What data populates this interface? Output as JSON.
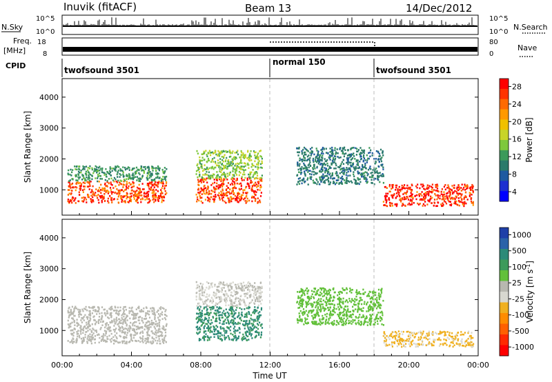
{
  "header": {
    "station": "Inuvik (fitACF)",
    "beam": "Beam 13",
    "date": "14/Dec/2012"
  },
  "status_panels": {
    "nsky_label": "N.Sky",
    "nsky_ticks": [
      "10^5",
      "10^0"
    ],
    "nsearch_label": "N.Search",
    "freq_label": "Freq.",
    "freq_unit": "[MHz]",
    "freq_ticks": [
      "18",
      "8"
    ],
    "nave_label": "Nave",
    "nave_ticks": [
      "80",
      "0"
    ],
    "cpid_label": "CPID",
    "cpid_segments": [
      {
        "name": "twofsound 3501",
        "start_hour": 0,
        "end_hour": 12
      },
      {
        "name": "normal 150",
        "start_hour": 12,
        "end_hour": 18
      },
      {
        "name": "twofsound 3501",
        "start_hour": 18,
        "end_hour": 24
      }
    ]
  },
  "chart_data": [
    {
      "type": "heatmap",
      "panel": "power",
      "ylabel": "Slant Range [km]",
      "xlabel": "",
      "ylim": [
        180,
        4600
      ],
      "xlim": [
        0,
        24
      ],
      "yticks": [
        1000,
        2000,
        3000,
        4000
      ],
      "colorbar": {
        "label": "Power [dB]",
        "ticks": [
          "28",
          "24",
          "20",
          "16",
          "12",
          "8",
          "4"
        ],
        "colors": [
          "#ff0000",
          "#ff3300",
          "#ff6a00",
          "#ff9900",
          "#f0c000",
          "#c8d428",
          "#7ec83c",
          "#3c9a5a",
          "#2a7a6a",
          "#1f5aa0",
          "#1d2fd0",
          "#0000ff"
        ]
      },
      "echo_regions": [
        {
          "x": [
            0.3,
            6.0
          ],
          "y": [
            600,
            1300
          ],
          "value": 26
        },
        {
          "x": [
            0.3,
            6.0
          ],
          "y": [
            1300,
            1800
          ],
          "value": 12
        },
        {
          "x": [
            7.7,
            11.5
          ],
          "y": [
            600,
            1400
          ],
          "value": 26
        },
        {
          "x": [
            7.7,
            11.5
          ],
          "y": [
            1400,
            2300
          ],
          "value": 15
        },
        {
          "x": [
            13.5,
            18.5
          ],
          "y": [
            1200,
            2400
          ],
          "value": 10
        },
        {
          "x": [
            18.5,
            23.7
          ],
          "y": [
            500,
            1200
          ],
          "value": 28
        }
      ]
    },
    {
      "type": "heatmap",
      "panel": "velocity",
      "ylabel": "Slant Range [km]",
      "xlabel": "Time UT",
      "ylim": [
        180,
        4600
      ],
      "xlim": [
        0,
        24
      ],
      "yticks": [
        1000,
        2000,
        3000,
        4000
      ],
      "xticks": [
        "00:00",
        "04:00",
        "08:00",
        "12:00",
        "16:00",
        "20:00",
        "00:00"
      ],
      "colorbar": {
        "label": "Velocity [m s",
        "label_exponent": "-1",
        "label_close": "]",
        "ticks": [
          "1000",
          "500",
          "100",
          "25",
          "-25",
          "-100",
          "-500",
          "-1000"
        ],
        "colors": [
          "#1f3fa8",
          "#2a62a8",
          "#2c8a78",
          "#3c9a5a",
          "#62c03a",
          "#b8b8b0",
          "#d8d8d0",
          "#f0b020",
          "#ff8c00",
          "#ff6000",
          "#ff2a00",
          "#ff0000"
        ]
      },
      "echo_regions": [
        {
          "x": [
            0.3,
            6.0
          ],
          "y": [
            600,
            1800
          ],
          "value": 50
        },
        {
          "x": [
            7.7,
            11.5
          ],
          "y": [
            700,
            1800
          ],
          "value": 600
        },
        {
          "x": [
            7.7,
            11.5
          ],
          "y": [
            1800,
            2600
          ],
          "value": 0
        },
        {
          "x": [
            13.5,
            18.5
          ],
          "y": [
            1200,
            2400
          ],
          "value": 300
        },
        {
          "x": [
            18.5,
            23.7
          ],
          "y": [
            500,
            1000
          ],
          "value": -200
        }
      ]
    }
  ]
}
